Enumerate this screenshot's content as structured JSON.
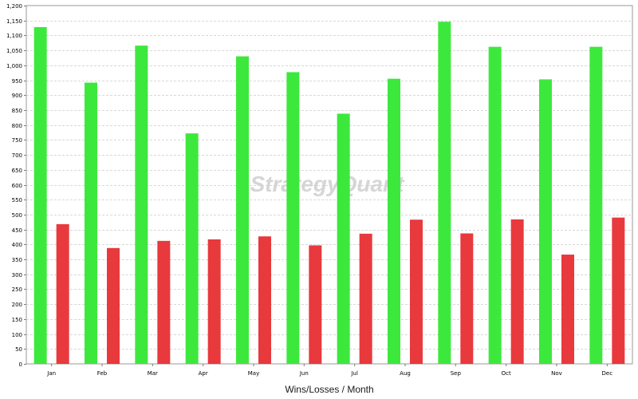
{
  "watermark": "StrategyQuant",
  "chart_data": {
    "type": "bar",
    "title": "",
    "xlabel": "Wins/Losses / Month",
    "ylabel": "",
    "ylim": [
      0,
      1200
    ],
    "y_ticks": [
      0,
      50,
      100,
      150,
      200,
      250,
      300,
      350,
      400,
      450,
      500,
      550,
      600,
      650,
      700,
      750,
      800,
      850,
      900,
      950,
      1000,
      1050,
      1100,
      1150,
      1200
    ],
    "y_tick_labels": [
      "0",
      "50",
      "100",
      "150",
      "200",
      "250",
      "300",
      "350",
      "400",
      "450",
      "500",
      "550",
      "600",
      "650",
      "700",
      "750",
      "800",
      "850",
      "900",
      "950",
      "1,000",
      "1,050",
      "1,100",
      "1,150",
      "1,200"
    ],
    "grid": true,
    "categories": [
      "Jan",
      "Feb",
      "Mar",
      "Apr",
      "May",
      "Jun",
      "Jul",
      "Aug",
      "Sep",
      "Oct",
      "Nov",
      "Dec"
    ],
    "series": [
      {
        "color": "#3de83d",
        "values": [
          1128,
          942,
          1066,
          772,
          1030,
          977,
          838,
          955,
          1146,
          1062,
          953,
          1062
        ]
      },
      {
        "color": "#e8393d",
        "values": [
          468,
          388,
          412,
          417,
          427,
          397,
          436,
          483,
          437,
          484,
          366,
          490
        ]
      }
    ]
  }
}
